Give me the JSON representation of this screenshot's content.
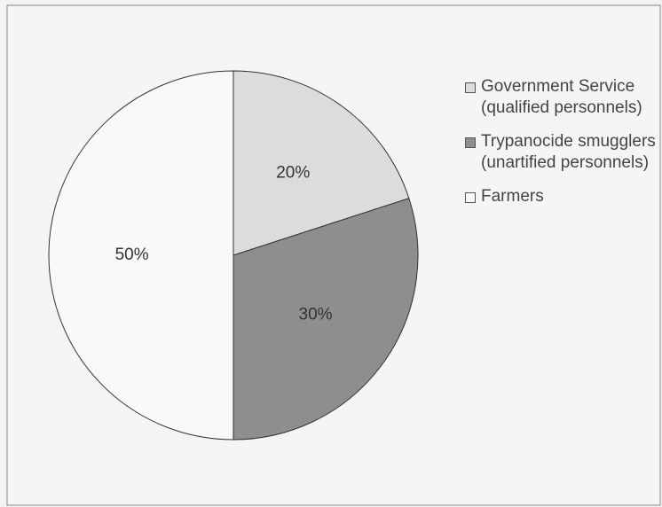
{
  "chart_data": {
    "type": "pie",
    "categories": [
      "Government Service (qualified personnels)",
      "Trypanocide smugglers (unartified personnels)",
      "Farmers"
    ],
    "values": [
      20,
      30,
      50
    ],
    "value_labels": [
      "20%",
      "30%",
      "50%"
    ],
    "colors": [
      "#dcdcdc",
      "#8e8e8e",
      "#f9f9f9"
    ],
    "legend": "right"
  }
}
